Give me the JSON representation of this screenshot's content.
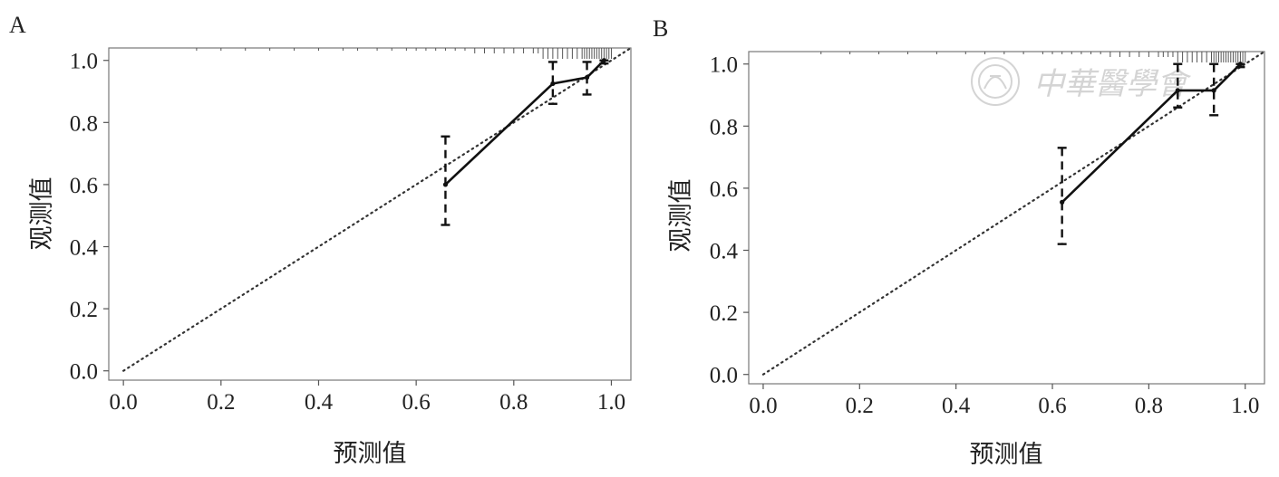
{
  "watermark": {
    "text": "中華醫學會",
    "icon": "seal-icon"
  },
  "chart_data": [
    {
      "type": "line",
      "panel": "A",
      "xlabel": "预测值",
      "ylabel": "观测值",
      "xlim": [
        -0.03,
        1.04
      ],
      "ylim": [
        -0.03,
        1.04
      ],
      "xticks": [
        "0.0",
        "0.2",
        "0.4",
        "0.6",
        "0.8",
        "1.0"
      ],
      "yticks": [
        "0.0",
        "0.2",
        "0.4",
        "0.6",
        "0.8",
        "1.0"
      ],
      "grid": false,
      "reference_line": {
        "x": [
          0,
          1.04
        ],
        "y": [
          0,
          1.04
        ],
        "style": "dotted"
      },
      "series": [
        {
          "x": [
            0.66,
            0.88,
            0.95,
            0.985
          ],
          "y": [
            0.6,
            0.925,
            0.945,
            1.0
          ]
        }
      ],
      "error_bars": [
        {
          "x": 0.66,
          "low": 0.47,
          "high": 0.755
        },
        {
          "x": 0.88,
          "low": 0.86,
          "high": 0.995
        },
        {
          "x": 0.95,
          "low": 0.89,
          "high": 0.995
        },
        {
          "x": 0.985,
          "low": 0.99,
          "high": 1.0
        }
      ],
      "rug": [
        0.15,
        0.2,
        0.25,
        0.3,
        0.35,
        0.4,
        0.45,
        0.48,
        0.52,
        0.55,
        0.58,
        0.6,
        0.62,
        0.64,
        0.66,
        0.68,
        0.7,
        0.72,
        0.74,
        0.76,
        0.78,
        0.8,
        0.82,
        0.84,
        0.85,
        0.86,
        0.87,
        0.88,
        0.89,
        0.9,
        0.91,
        0.92,
        0.93,
        0.94,
        0.945,
        0.95,
        0.955,
        0.96,
        0.965,
        0.97,
        0.975,
        0.98,
        0.985,
        0.99,
        0.995,
        1.0
      ]
    },
    {
      "type": "line",
      "panel": "B",
      "xlabel": "预测值",
      "ylabel": "观测值",
      "xlim": [
        -0.03,
        1.04
      ],
      "ylim": [
        -0.03,
        1.04
      ],
      "xticks": [
        "0.0",
        "0.2",
        "0.4",
        "0.6",
        "0.8",
        "1.0"
      ],
      "yticks": [
        "0.0",
        "0.2",
        "0.4",
        "0.6",
        "0.8",
        "1.0"
      ],
      "grid": false,
      "reference_line": {
        "x": [
          0,
          1.04
        ],
        "y": [
          0,
          1.04
        ],
        "style": "dotted"
      },
      "series": [
        {
          "x": [
            0.62,
            0.86,
            0.935,
            0.99
          ],
          "y": [
            0.555,
            0.915,
            0.915,
            1.0
          ]
        }
      ],
      "error_bars": [
        {
          "x": 0.62,
          "low": 0.42,
          "high": 0.73
        },
        {
          "x": 0.86,
          "low": 0.86,
          "high": 1.0
        },
        {
          "x": 0.935,
          "low": 0.835,
          "high": 1.0
        },
        {
          "x": 0.99,
          "low": 0.99,
          "high": 1.0
        }
      ],
      "rug": [
        0.12,
        0.18,
        0.24,
        0.3,
        0.36,
        0.42,
        0.46,
        0.5,
        0.54,
        0.58,
        0.6,
        0.62,
        0.64,
        0.66,
        0.68,
        0.7,
        0.72,
        0.74,
        0.76,
        0.78,
        0.8,
        0.82,
        0.83,
        0.84,
        0.85,
        0.86,
        0.87,
        0.88,
        0.89,
        0.9,
        0.91,
        0.92,
        0.93,
        0.935,
        0.94,
        0.945,
        0.95,
        0.955,
        0.96,
        0.965,
        0.97,
        0.975,
        0.98,
        0.985,
        0.99,
        0.995,
        1.0
      ]
    }
  ]
}
